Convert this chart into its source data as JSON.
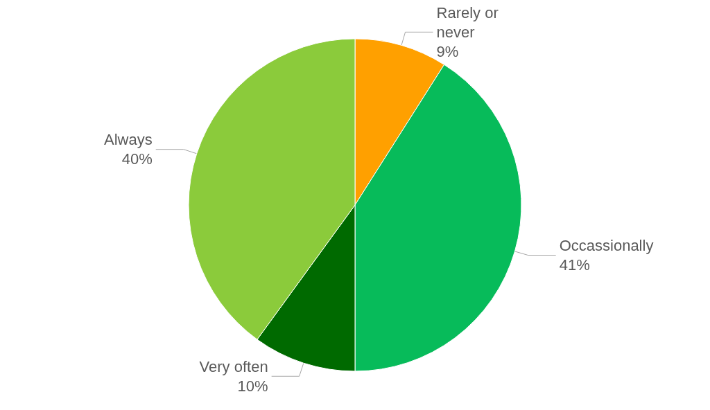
{
  "chart_data": {
    "type": "pie",
    "categories": [
      "Rarely or never",
      "Occassionally",
      "Very often",
      "Always"
    ],
    "values": [
      9,
      41,
      10,
      40
    ],
    "value_labels": [
      "9%",
      "41%",
      "10%",
      "40%"
    ],
    "colors": [
      "#ffa000",
      "#07bb5a",
      "#006a00",
      "#8bcb3b"
    ],
    "legend": false
  }
}
